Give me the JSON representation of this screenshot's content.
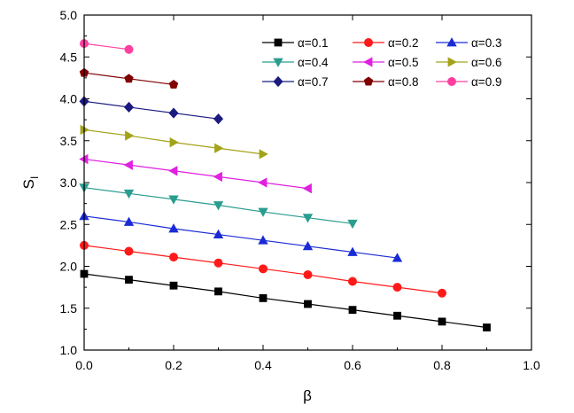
{
  "chart_data": {
    "type": "line",
    "title": "",
    "xlabel": "β",
    "ylabel_main": "S",
    "ylabel_sub": "I",
    "xlim": [
      0.0,
      1.0
    ],
    "ylim": [
      1.0,
      5.0
    ],
    "xticks": [
      0.0,
      0.2,
      0.4,
      0.6,
      0.8,
      1.0
    ],
    "xtick_labels": [
      "0.0",
      "0.2",
      "0.4",
      "0.6",
      "0.8",
      "1.0"
    ],
    "yticks": [
      1.0,
      1.5,
      2.0,
      2.5,
      3.0,
      3.5,
      4.0,
      4.5,
      5.0
    ],
    "ytick_labels": [
      "1.0",
      "1.5",
      "2.0",
      "2.5",
      "3.0",
      "3.5",
      "4.0",
      "4.5",
      "5.0"
    ],
    "legend_position": "top-right",
    "series": [
      {
        "name": "α=0.1",
        "color": "#000000",
        "marker": "square",
        "x": [
          0.0,
          0.1,
          0.2,
          0.3,
          0.4,
          0.5,
          0.6,
          0.7,
          0.8,
          0.9
        ],
        "y": [
          1.91,
          1.84,
          1.77,
          1.7,
          1.62,
          1.55,
          1.48,
          1.41,
          1.34,
          1.27
        ]
      },
      {
        "name": "α=0.2",
        "color": "#ff1a1a",
        "marker": "circle",
        "x": [
          0.0,
          0.1,
          0.2,
          0.3,
          0.4,
          0.5,
          0.6,
          0.7,
          0.8
        ],
        "y": [
          2.25,
          2.18,
          2.11,
          2.04,
          1.97,
          1.9,
          1.82,
          1.75,
          1.68
        ]
      },
      {
        "name": "α=0.3",
        "color": "#1a2bd6",
        "marker": "triangle-up",
        "x": [
          0.0,
          0.1,
          0.2,
          0.3,
          0.4,
          0.5,
          0.6,
          0.7
        ],
        "y": [
          2.6,
          2.53,
          2.45,
          2.38,
          2.31,
          2.24,
          2.17,
          2.1
        ]
      },
      {
        "name": "α=0.4",
        "color": "#2a9d8f",
        "marker": "triangle-down",
        "x": [
          0.0,
          0.1,
          0.2,
          0.3,
          0.4,
          0.5,
          0.6
        ],
        "y": [
          2.94,
          2.87,
          2.8,
          2.73,
          2.65,
          2.58,
          2.51
        ]
      },
      {
        "name": "α=0.5",
        "color": "#e020e0",
        "marker": "triangle-left",
        "x": [
          0.0,
          0.1,
          0.2,
          0.3,
          0.4,
          0.5
        ],
        "y": [
          3.28,
          3.21,
          3.14,
          3.07,
          3.0,
          2.93
        ]
      },
      {
        "name": "α=0.6",
        "color": "#a3a31a",
        "marker": "triangle-right",
        "x": [
          0.0,
          0.1,
          0.2,
          0.3,
          0.4
        ],
        "y": [
          3.63,
          3.56,
          3.48,
          3.41,
          3.34
        ]
      },
      {
        "name": "α=0.7",
        "color": "#1a1a80",
        "marker": "diamond",
        "x": [
          0.0,
          0.1,
          0.2,
          0.3
        ],
        "y": [
          3.97,
          3.9,
          3.83,
          3.76
        ]
      },
      {
        "name": "α=0.8",
        "color": "#800000",
        "marker": "pentagon",
        "x": [
          0.0,
          0.1,
          0.2
        ],
        "y": [
          4.31,
          4.24,
          4.17
        ]
      },
      {
        "name": "α=0.9",
        "color": "#ff3fa0",
        "marker": "circle",
        "x": [
          0.0,
          0.1
        ],
        "y": [
          4.66,
          4.59
        ]
      }
    ]
  }
}
